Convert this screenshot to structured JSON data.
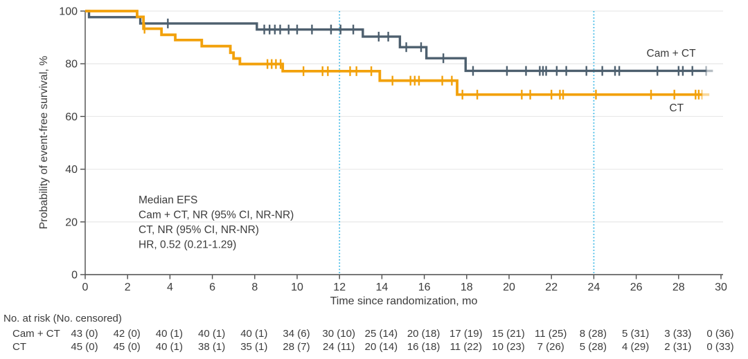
{
  "figure": {
    "type_label": "Kaplan-Meier event-free survival plot"
  },
  "chart_data": {
    "type": "line",
    "subtype": "kaplan-meier-step",
    "title": "",
    "xlabel": "Time since randomization, mo",
    "ylabel": "Probability of event-free survival, %",
    "xlim": [
      0,
      30
    ],
    "ylim": [
      0,
      100
    ],
    "xticks": [
      0,
      2,
      4,
      6,
      8,
      10,
      12,
      14,
      16,
      18,
      20,
      22,
      24,
      26,
      28,
      30
    ],
    "yticks": [
      0,
      20,
      40,
      60,
      80,
      100
    ],
    "grid": "horizontal",
    "reference_lines_x": [
      12,
      24
    ],
    "annotation_lines": [
      "Median EFS",
      "Cam + CT, NR (95% CI, NR-NR)",
      "CT, NR (95% CI, NR-NR)",
      "HR, 0.52 (0.21-1.29)"
    ],
    "series": [
      {
        "name": "Cam + CT",
        "color": "#4d5f6e",
        "label": {
          "text": "Cam + CT",
          "x_mo": 27.65,
          "y_pct": 82.7
        },
        "steps": [
          [
            0,
            100
          ],
          [
            0.18,
            97.7
          ],
          [
            2.6,
            95.3
          ],
          [
            8.1,
            93.0
          ],
          [
            13.1,
            90.3
          ],
          [
            14.85,
            86.3
          ],
          [
            16.1,
            82.1
          ],
          [
            17.95,
            77.3
          ]
        ],
        "end_x": 29.3,
        "fade_end_x": 29.62,
        "faded_censor_x": 29.3,
        "censors": [
          [
            3.9,
            95.3
          ],
          [
            8.45,
            93.0
          ],
          [
            8.7,
            93.0
          ],
          [
            8.95,
            93.0
          ],
          [
            9.2,
            93.0
          ],
          [
            9.6,
            93.0
          ],
          [
            10.0,
            93.0
          ],
          [
            10.7,
            93.0
          ],
          [
            11.6,
            93.0
          ],
          [
            12.05,
            93.0
          ],
          [
            12.65,
            93.0
          ],
          [
            13.85,
            90.3
          ],
          [
            14.3,
            90.3
          ],
          [
            15.15,
            86.3
          ],
          [
            15.85,
            86.3
          ],
          [
            16.9,
            82.1
          ],
          [
            18.3,
            77.3
          ],
          [
            19.9,
            77.3
          ],
          [
            20.8,
            77.3
          ],
          [
            21.45,
            77.3
          ],
          [
            21.6,
            77.3
          ],
          [
            21.75,
            77.3
          ],
          [
            22.25,
            77.3
          ],
          [
            22.7,
            77.3
          ],
          [
            23.65,
            77.3
          ],
          [
            24.4,
            77.3
          ],
          [
            25.0,
            77.3
          ],
          [
            25.2,
            77.3
          ],
          [
            27.0,
            77.3
          ],
          [
            28.0,
            77.3
          ],
          [
            28.2,
            77.3
          ],
          [
            28.65,
            77.3
          ]
        ]
      },
      {
        "name": "CT",
        "color": "#f2a10b",
        "label": {
          "text": "CT",
          "x_mo": 27.9,
          "y_pct": 61.9
        },
        "steps": [
          [
            0,
            100
          ],
          [
            2.45,
            97.8
          ],
          [
            2.75,
            93.3
          ],
          [
            3.6,
            91.0
          ],
          [
            4.25,
            89.0
          ],
          [
            5.5,
            86.7
          ],
          [
            6.85,
            84.2
          ],
          [
            7.0,
            82.0
          ],
          [
            7.3,
            79.9
          ],
          [
            9.32,
            77.2
          ],
          [
            13.9,
            73.6
          ],
          [
            17.55,
            68.3
          ]
        ],
        "end_x": 29.1,
        "fade_end_x": 29.45,
        "faded_censor_x": 29.1,
        "censors": [
          [
            2.8,
            93.3
          ],
          [
            8.6,
            79.9
          ],
          [
            8.8,
            79.9
          ],
          [
            9.0,
            79.9
          ],
          [
            9.22,
            79.9
          ],
          [
            10.3,
            77.2
          ],
          [
            11.2,
            77.2
          ],
          [
            11.45,
            77.2
          ],
          [
            12.5,
            77.2
          ],
          [
            12.8,
            77.2
          ],
          [
            13.5,
            77.2
          ],
          [
            14.5,
            73.6
          ],
          [
            15.35,
            73.6
          ],
          [
            15.55,
            73.6
          ],
          [
            15.75,
            73.6
          ],
          [
            16.85,
            73.6
          ],
          [
            17.3,
            73.6
          ],
          [
            17.8,
            68.3
          ],
          [
            18.5,
            68.3
          ],
          [
            20.6,
            68.3
          ],
          [
            21.0,
            68.3
          ],
          [
            22.0,
            68.3
          ],
          [
            22.4,
            68.3
          ],
          [
            22.55,
            68.3
          ],
          [
            24.1,
            68.3
          ],
          [
            26.7,
            68.3
          ],
          [
            27.8,
            68.3
          ],
          [
            28.8,
            68.3
          ],
          [
            28.95,
            68.3
          ]
        ]
      }
    ],
    "risk_table": {
      "header": "No. at risk (No. censored)",
      "times": [
        0,
        2,
        4,
        6,
        8,
        10,
        12,
        14,
        16,
        18,
        20,
        22,
        24,
        26,
        28,
        30
      ],
      "rows": [
        {
          "label": "Cam + CT",
          "values": [
            "43 (0)",
            "42 (0)",
            "40 (1)",
            "40 (1)",
            "40 (1)",
            "34 (6)",
            "30 (10)",
            "25 (14)",
            "20 (18)",
            "17 (19)",
            "15 (21)",
            "11 (25)",
            "8 (28)",
            "5 (31)",
            "3 (33)",
            "0 (36)"
          ]
        },
        {
          "label": "CT",
          "values": [
            "45 (0)",
            "45 (0)",
            "40 (1)",
            "38 (1)",
            "35 (1)",
            "28 (7)",
            "24 (11)",
            "20 (14)",
            "16 (18)",
            "11 (22)",
            "10 (23)",
            "7 (26)",
            "5 (28)",
            "4 (29)",
            "2 (31)",
            "0 (33)"
          ]
        }
      ]
    },
    "colors": {
      "camct_line": "#4d5f6e",
      "ct_line": "#f2a10b",
      "reference_line": "#3fb9e6",
      "text": "#3b3b3b",
      "axis": "#4a4a4a",
      "grid": "#eaeaea"
    }
  }
}
